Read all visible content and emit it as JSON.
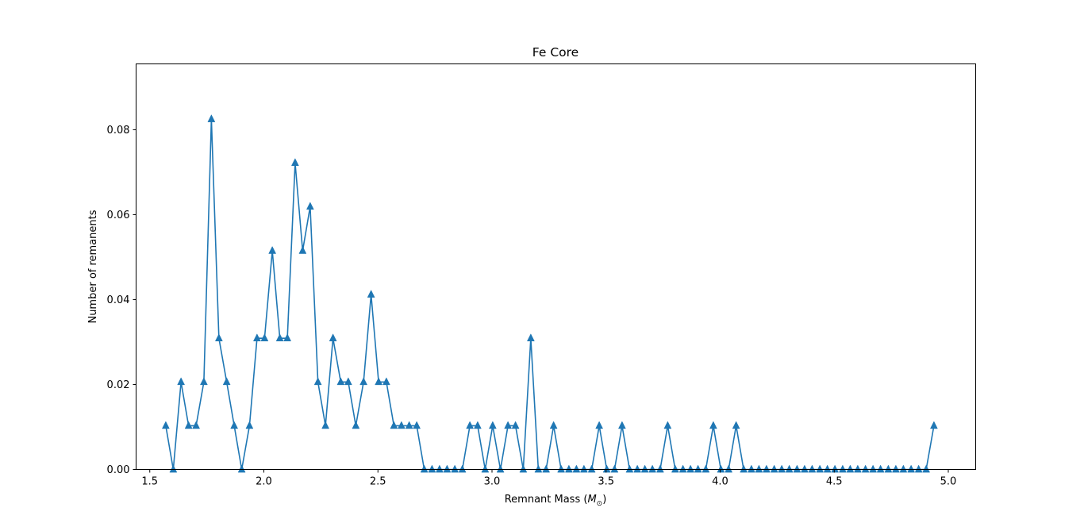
{
  "chart_data": {
    "type": "line",
    "title": "Fe Core",
    "xlabel_prefix": "Remnant Mass (",
    "xlabel_symbol": "M",
    "xlabel_subscript": "⊙",
    "xlabel_suffix": ")",
    "ylabel": "Number of remanents",
    "xlim": [
      1.44,
      5.12
    ],
    "ylim": [
      0.0,
      0.0955
    ],
    "xticks": [
      1.5,
      2.0,
      2.5,
      3.0,
      3.5,
      4.0,
      4.5,
      5.0
    ],
    "xtick_labels": [
      "1.5",
      "2.0",
      "2.5",
      "3.0",
      "3.5",
      "4.0",
      "4.5",
      "5.0"
    ],
    "yticks": [
      0.0,
      0.02,
      0.04,
      0.06,
      0.08
    ],
    "ytick_labels": [
      "0.00",
      "0.02",
      "0.04",
      "0.06",
      "0.08"
    ],
    "marker": "triangle-up",
    "grid": false,
    "legend": "none",
    "series": [
      {
        "color": "#1f77b4",
        "x": [
          1.57,
          1.603,
          1.637,
          1.67,
          1.703,
          1.737,
          1.77,
          1.803,
          1.837,
          1.87,
          1.903,
          1.937,
          1.97,
          2.003,
          2.037,
          2.07,
          2.103,
          2.137,
          2.17,
          2.203,
          2.237,
          2.27,
          2.303,
          2.337,
          2.37,
          2.403,
          2.437,
          2.47,
          2.503,
          2.537,
          2.57,
          2.603,
          2.637,
          2.67,
          2.703,
          2.737,
          2.77,
          2.803,
          2.837,
          2.87,
          2.903,
          2.937,
          2.97,
          3.003,
          3.037,
          3.07,
          3.103,
          3.137,
          3.17,
          3.203,
          3.237,
          3.27,
          3.303,
          3.337,
          3.37,
          3.403,
          3.437,
          3.47,
          3.503,
          3.537,
          3.57,
          3.603,
          3.637,
          3.67,
          3.703,
          3.737,
          3.77,
          3.803,
          3.837,
          3.87,
          3.903,
          3.937,
          3.97,
          4.003,
          4.037,
          4.07,
          4.103,
          4.137,
          4.17,
          4.203,
          4.237,
          4.27,
          4.303,
          4.337,
          4.37,
          4.403,
          4.437,
          4.47,
          4.503,
          4.537,
          4.57,
          4.603,
          4.637,
          4.67,
          4.703,
          4.737,
          4.77,
          4.803,
          4.837,
          4.87,
          4.903,
          4.937
        ],
        "y": [
          0.0103,
          0.0,
          0.0206,
          0.0103,
          0.0103,
          0.0206,
          0.0825,
          0.0309,
          0.0206,
          0.0103,
          0.0,
          0.0103,
          0.0309,
          0.0309,
          0.0515,
          0.0309,
          0.0309,
          0.0722,
          0.0515,
          0.0619,
          0.0206,
          0.0103,
          0.0309,
          0.0206,
          0.0206,
          0.0103,
          0.0206,
          0.0412,
          0.0206,
          0.0206,
          0.0103,
          0.0103,
          0.0103,
          0.0103,
          0.0,
          0.0,
          0.0,
          0.0,
          0.0,
          0.0,
          0.0103,
          0.0103,
          0.0,
          0.0103,
          0.0,
          0.0103,
          0.0103,
          0.0,
          0.0309,
          0.0,
          0.0,
          0.0103,
          0.0,
          0.0,
          0.0,
          0.0,
          0.0,
          0.0103,
          0.0,
          0.0,
          0.0103,
          0.0,
          0.0,
          0.0,
          0.0,
          0.0,
          0.0103,
          0.0,
          0.0,
          0.0,
          0.0,
          0.0,
          0.0103,
          0.0,
          0.0,
          0.0103,
          0.0,
          0.0,
          0.0,
          0.0,
          0.0,
          0.0,
          0.0,
          0.0,
          0.0,
          0.0,
          0.0,
          0.0,
          0.0,
          0.0,
          0.0,
          0.0,
          0.0,
          0.0,
          0.0,
          0.0,
          0.0,
          0.0,
          0.0,
          0.0,
          0.0,
          0.0103
        ]
      }
    ]
  }
}
